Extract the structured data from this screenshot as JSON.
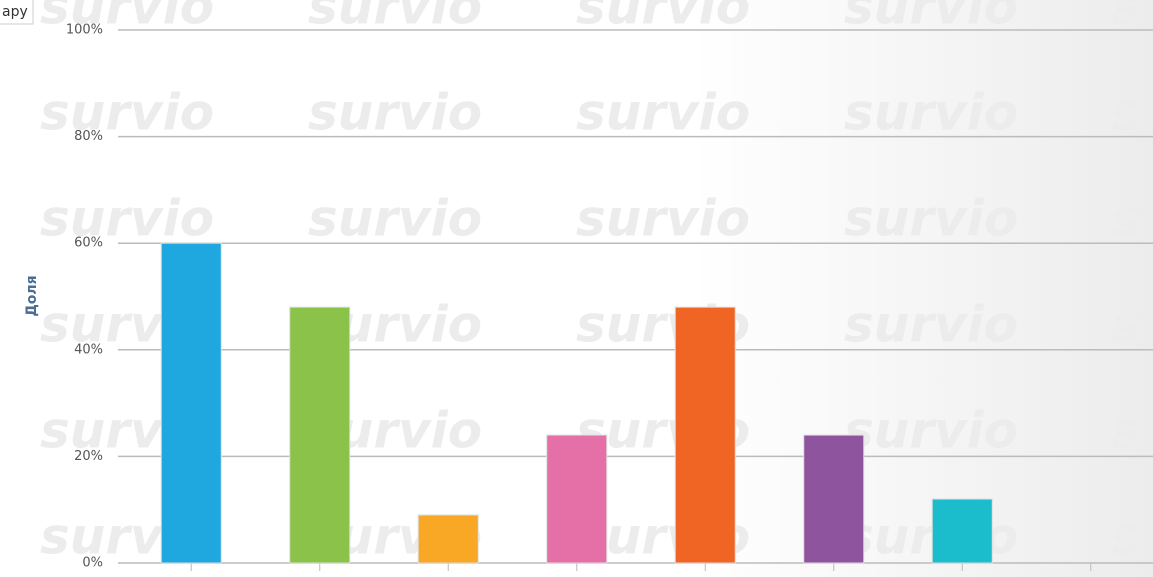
{
  "chart_data": {
    "type": "bar",
    "legend_text": "ару",
    "watermark": "survio",
    "y_label": "Доля",
    "categories": [
      null,
      null,
      null,
      null,
      null,
      null,
      null,
      null
    ],
    "values": [
      60,
      48,
      9,
      24,
      48,
      24,
      12,
      0
    ],
    "colors": [
      "#1fa8e0",
      "#8bc34a",
      "#f9a825",
      "#e56fa7",
      "#f06424",
      "#8e559e",
      "#1bbccc",
      "#9e9e9e"
    ],
    "ylim": [
      0,
      100
    ],
    "yticks": [
      {
        "value": 0,
        "label": "0%"
      },
      {
        "value": 20,
        "label": "20%"
      },
      {
        "value": 40,
        "label": "40%"
      },
      {
        "value": 60,
        "label": "60%"
      },
      {
        "value": 80,
        "label": "80%"
      },
      {
        "value": 100,
        "label": "100%"
      }
    ],
    "grid": true
  }
}
